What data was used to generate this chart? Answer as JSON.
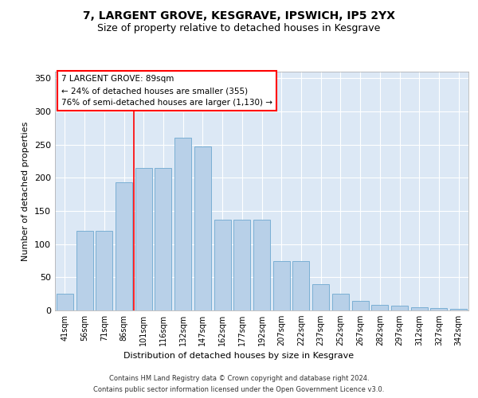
{
  "title": "7, LARGENT GROVE, KESGRAVE, IPSWICH, IP5 2YX",
  "subtitle": "Size of property relative to detached houses in Kesgrave",
  "xlabel": "Distribution of detached houses by size in Kesgrave",
  "ylabel": "Number of detached properties",
  "categories": [
    "41sqm",
    "56sqm",
    "71sqm",
    "86sqm",
    "101sqm",
    "116sqm",
    "132sqm",
    "147sqm",
    "162sqm",
    "177sqm",
    "192sqm",
    "207sqm",
    "222sqm",
    "237sqm",
    "252sqm",
    "267sqm",
    "282sqm",
    "297sqm",
    "312sqm",
    "327sqm",
    "342sqm"
  ],
  "values": [
    25,
    120,
    120,
    193,
    215,
    215,
    260,
    247,
    137,
    137,
    137,
    74,
    74,
    40,
    25,
    15,
    8,
    7,
    5,
    4,
    3
  ],
  "bar_color": "#b8d0e8",
  "bar_edge_color": "#7aafd4",
  "vline_x": 3.5,
  "vline_color": "red",
  "annotation_text": "7 LARGENT GROVE: 89sqm\n← 24% of detached houses are smaller (355)\n76% of semi-detached houses are larger (1,130) →",
  "annotation_box_color": "white",
  "annotation_box_edge_color": "red",
  "ylim": [
    0,
    360
  ],
  "yticks": [
    0,
    50,
    100,
    150,
    200,
    250,
    300,
    350
  ],
  "bg_color": "#dce8f5",
  "footer_line1": "Contains HM Land Registry data © Crown copyright and database right 2024.",
  "footer_line2": "Contains public sector information licensed under the Open Government Licence v3.0.",
  "title_fontsize": 10,
  "subtitle_fontsize": 9,
  "xlabel_fontsize": 8,
  "ylabel_fontsize": 8
}
